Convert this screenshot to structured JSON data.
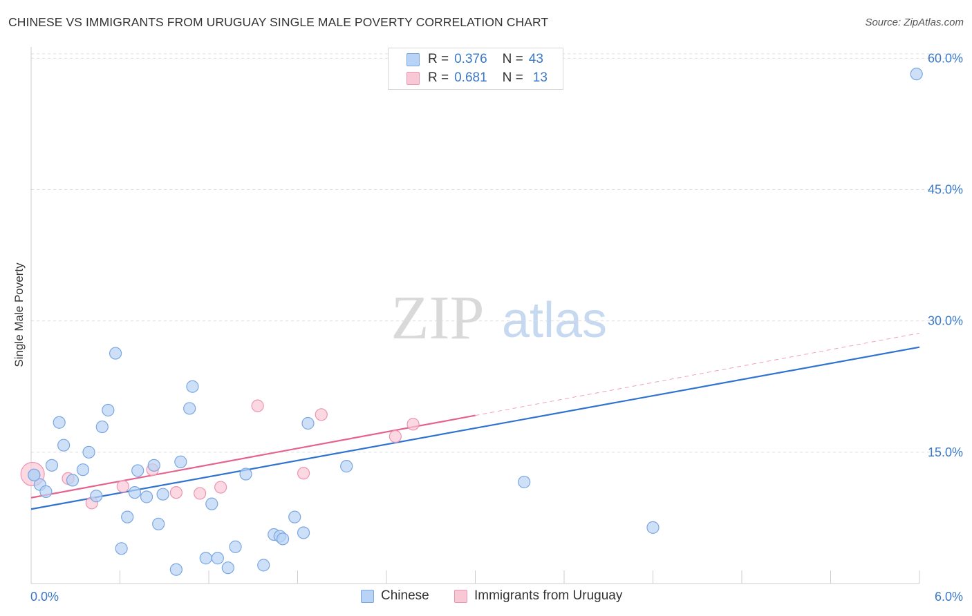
{
  "header": {
    "title": "CHINESE VS IMMIGRANTS FROM URUGUAY SINGLE MALE POVERTY CORRELATION CHART",
    "source": "Source: ZipAtlas.com"
  },
  "legend": {
    "series1": {
      "r_label": "R =",
      "r_value": "0.376",
      "n_label": "N =",
      "n_value": "43"
    },
    "series2": {
      "r_label": "R =",
      "r_value": "0.681",
      "n_label": "N =",
      "n_value": "13"
    }
  },
  "watermark": {
    "zip": "ZIP",
    "atlas": "atlas"
  },
  "colors": {
    "blue_fill": "#b8d3f5",
    "blue_stroke": "#7aa7e0",
    "blue_line": "#2f72d0",
    "pink_fill": "#f9c8d6",
    "pink_stroke": "#eb95b0",
    "pink_line": "#e5628e",
    "axis_text": "#3a78c8",
    "grid": "#dddddd"
  },
  "chart_data": {
    "type": "scatter",
    "title": "CHINESE VS IMMIGRANTS FROM URUGUAY SINGLE MALE POVERTY CORRELATION CHART",
    "xlabel": "",
    "ylabel": "Single Male Poverty",
    "xlim": [
      0,
      6
    ],
    "ylim": [
      0,
      60
    ],
    "x_tick_labels": [
      "0.0%",
      "6.0%"
    ],
    "y_ticks": [
      15,
      30,
      45,
      60
    ],
    "y_tick_labels": [
      "15.0%",
      "30.0%",
      "45.0%",
      "60.0%"
    ],
    "legend_position": "top-center",
    "series": [
      {
        "name": "Chinese",
        "r": 0.376,
        "n": 43,
        "trend": {
          "x": [
            0,
            6
          ],
          "y": [
            8.5,
            27.0
          ],
          "style": "solid"
        },
        "points": [
          [
            0.02,
            12.4
          ],
          [
            0.06,
            11.3
          ],
          [
            0.1,
            10.5
          ],
          [
            0.14,
            13.5
          ],
          [
            0.19,
            18.4
          ],
          [
            0.22,
            15.8
          ],
          [
            0.28,
            11.8
          ],
          [
            0.35,
            13.0
          ],
          [
            0.39,
            15.0
          ],
          [
            0.44,
            10.0
          ],
          [
            0.48,
            17.9
          ],
          [
            0.52,
            19.8
          ],
          [
            0.57,
            26.3
          ],
          [
            0.61,
            4.0
          ],
          [
            0.65,
            7.6
          ],
          [
            0.7,
            10.4
          ],
          [
            0.72,
            12.9
          ],
          [
            0.78,
            9.9
          ],
          [
            0.83,
            13.5
          ],
          [
            0.86,
            6.8
          ],
          [
            0.89,
            10.2
          ],
          [
            0.98,
            1.6
          ],
          [
            1.01,
            13.9
          ],
          [
            1.07,
            20.0
          ],
          [
            1.09,
            22.5
          ],
          [
            1.18,
            2.9
          ],
          [
            1.22,
            9.1
          ],
          [
            1.26,
            2.9
          ],
          [
            1.33,
            1.8
          ],
          [
            1.38,
            4.2
          ],
          [
            1.45,
            12.5
          ],
          [
            1.57,
            2.1
          ],
          [
            1.64,
            5.6
          ],
          [
            1.68,
            5.4
          ],
          [
            1.7,
            5.1
          ],
          [
            1.78,
            7.6
          ],
          [
            1.84,
            5.8
          ],
          [
            1.87,
            18.3
          ],
          [
            2.13,
            13.4
          ],
          [
            3.33,
            11.6
          ],
          [
            4.2,
            6.4
          ],
          [
            5.98,
            58.2
          ],
          [
            0.02,
            12.4
          ]
        ]
      },
      {
        "name": "Immigrants from Uruguay",
        "r": 0.681,
        "n": 13,
        "trend": {
          "x": [
            0,
            3.0
          ],
          "y": [
            9.8,
            19.2
          ],
          "style": "solid",
          "extended_x": [
            3.0,
            6.0
          ],
          "extended_y": [
            19.2,
            28.6
          ],
          "extended_style": "dashed"
        },
        "points": [
          [
            0.01,
            12.5
          ],
          [
            0.25,
            12.0
          ],
          [
            0.41,
            9.2
          ],
          [
            0.62,
            11.1
          ],
          [
            0.82,
            13.0
          ],
          [
            0.98,
            10.4
          ],
          [
            1.14,
            10.3
          ],
          [
            1.28,
            11.0
          ],
          [
            1.53,
            20.3
          ],
          [
            1.84,
            12.6
          ],
          [
            1.96,
            19.3
          ],
          [
            2.46,
            16.8
          ],
          [
            2.58,
            18.2
          ]
        ]
      }
    ]
  },
  "bottom_legend": {
    "series1_label": "Chinese",
    "series2_label": "Immigrants from Uruguay"
  }
}
